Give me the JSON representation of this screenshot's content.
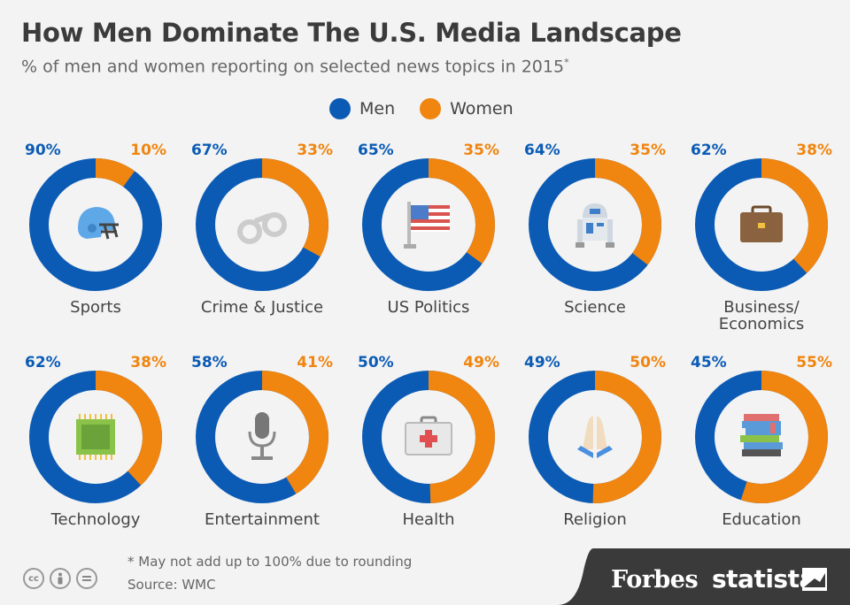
{
  "title": "How Men Dominate The U.S. Media Landscape",
  "subtitle": "% of men and women reporting on selected news topics in 2015",
  "subtitle_mark": "*",
  "legend": {
    "men": "Men",
    "women": "Women"
  },
  "colors": {
    "men": "#0b5bb5",
    "women": "#f0850f"
  },
  "footer": {
    "note": "* May not add up to 100% due to rounding",
    "source": "Source: WMC",
    "brand_forbes": "Forbes",
    "brand_statista": "statista"
  },
  "chart_data": {
    "type": "pie",
    "title": "How Men Dominate The U.S. Media Landscape",
    "subtitle": "% of men and women reporting on selected news topics in 2015*",
    "series_names": [
      "Men",
      "Women"
    ],
    "panels": [
      {
        "topic": "Sports",
        "icon": "football-helmet-icon",
        "men": 90,
        "women": 10,
        "men_label": "90%",
        "women_label": "10%"
      },
      {
        "topic": "Crime & Justice",
        "icon": "handcuffs-icon",
        "men": 67,
        "women": 33,
        "men_label": "67%",
        "women_label": "33%"
      },
      {
        "topic": "US Politics",
        "icon": "us-flag-icon",
        "men": 65,
        "women": 35,
        "men_label": "65%",
        "women_label": "35%"
      },
      {
        "topic": "Science",
        "icon": "robot-icon",
        "men": 64,
        "women": 35,
        "men_label": "64%",
        "women_label": "35%"
      },
      {
        "topic": "Business/ Economics",
        "icon": "briefcase-icon",
        "men": 62,
        "women": 38,
        "men_label": "62%",
        "women_label": "38%"
      },
      {
        "topic": "Technology",
        "icon": "microchip-icon",
        "men": 62,
        "women": 38,
        "men_label": "62%",
        "women_label": "38%"
      },
      {
        "topic": "Entertainment",
        "icon": "microphone-icon",
        "men": 58,
        "women": 41,
        "men_label": "58%",
        "women_label": "41%"
      },
      {
        "topic": "Health",
        "icon": "first-aid-kit-icon",
        "men": 50,
        "women": 49,
        "men_label": "50%",
        "women_label": "49%"
      },
      {
        "topic": "Religion",
        "icon": "praying-hands-icon",
        "men": 49,
        "women": 50,
        "men_label": "49%",
        "women_label": "50%"
      },
      {
        "topic": "Education",
        "icon": "books-icon",
        "men": 45,
        "women": 55,
        "men_label": "45%",
        "women_label": "55%"
      }
    ]
  }
}
